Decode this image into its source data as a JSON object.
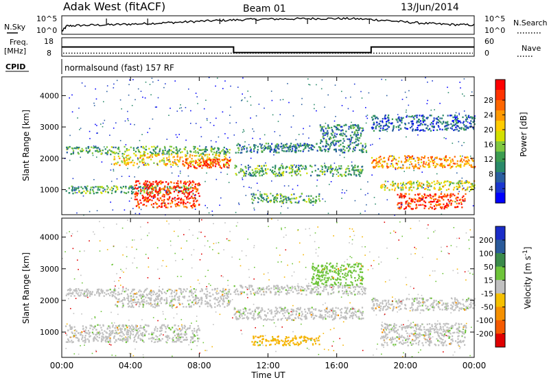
{
  "header": {
    "station": "Adak West (fitACF)",
    "beam": "Beam 01",
    "date": "13/Jun/2014"
  },
  "chart_data": [
    {
      "type": "line",
      "name": "noise-panel",
      "left_label": "N.Sky",
      "right_label": "N.Search",
      "left_ticks": [
        "10^5",
        "10^0"
      ],
      "right_ticks": [
        "10^5",
        "10^0"
      ],
      "x_range_hours": [
        0,
        24
      ],
      "noise_profile": [
        [
          0.0,
          0.15
        ],
        [
          0.3,
          0.45
        ],
        [
          1.0,
          0.48
        ],
        [
          2.0,
          0.5
        ],
        [
          3.0,
          0.52
        ],
        [
          4.0,
          0.55
        ],
        [
          5.0,
          0.58
        ],
        [
          6.0,
          0.62
        ],
        [
          7.0,
          0.66
        ],
        [
          8.0,
          0.7
        ],
        [
          9.0,
          0.74
        ],
        [
          10.0,
          0.77
        ],
        [
          11.0,
          0.8
        ],
        [
          12.0,
          0.82
        ],
        [
          13.0,
          0.83
        ],
        [
          14.0,
          0.84
        ],
        [
          15.0,
          0.85
        ],
        [
          16.0,
          0.85
        ],
        [
          17.0,
          0.84
        ],
        [
          18.0,
          0.8
        ],
        [
          19.0,
          0.74
        ],
        [
          20.0,
          0.66
        ],
        [
          21.0,
          0.6
        ],
        [
          22.0,
          0.55
        ],
        [
          23.0,
          0.52
        ],
        [
          24.0,
          0.5
        ]
      ]
    },
    {
      "type": "line",
      "name": "frequency-panel",
      "left_label": "Freq.",
      "left_unit": "[MHz]",
      "left_ticks": [
        "18",
        "8"
      ],
      "right_label": "Nave",
      "right_ticks": [
        "60",
        "0"
      ],
      "freq_steps_hours": [
        [
          0,
          10,
          13
        ],
        [
          10,
          18,
          10
        ],
        [
          18,
          24,
          13
        ]
      ],
      "freq_range": [
        8,
        18
      ],
      "nave_dotted_level": 10,
      "nave_range": [
        0,
        60
      ],
      "cpid_label": "CPID",
      "cpid_text": "normalsound (fast) 157 RF"
    },
    {
      "type": "heatmap",
      "name": "power-panel",
      "ylabel": "Slant Range [km]",
      "yticks": [
        1000,
        2000,
        3000,
        4000
      ],
      "ylim": [
        200,
        4600
      ],
      "xlim_hours": [
        0,
        24
      ],
      "colorbar_label": "Power [dB]",
      "colorbar_ticks": [
        "28",
        "24",
        "20",
        "16",
        "12",
        "8",
        "4"
      ],
      "colorbar_colors": [
        "#ff0000",
        "#ff3300",
        "#ff6600",
        "#ff9900",
        "#ffcc00",
        "#d4e000",
        "#80c840",
        "#3c9c50",
        "#2a8a6a",
        "#2a5ea0",
        "#1a36d0",
        "#0000ff"
      ],
      "echo_bands": [
        {
          "t0": 0.2,
          "t1": 9.8,
          "r0": 2150,
          "r1": 2400,
          "level": 0.35
        },
        {
          "t0": 3.0,
          "t1": 9.8,
          "r0": 1800,
          "r1": 2150,
          "level": 0.6
        },
        {
          "t0": 7.0,
          "t1": 9.8,
          "r0": 1700,
          "r1": 2000,
          "level": 0.95
        },
        {
          "t0": 0.2,
          "t1": 7.5,
          "r0": 900,
          "r1": 1150,
          "level": 0.4
        },
        {
          "t0": 4.2,
          "t1": 8.0,
          "r0": 450,
          "r1": 1300,
          "level": 0.9
        },
        {
          "t0": 10.0,
          "t1": 17.5,
          "r0": 1450,
          "r1": 1800,
          "level": 0.4
        },
        {
          "t0": 10.0,
          "t1": 17.8,
          "r0": 2200,
          "r1": 2500,
          "level": 0.3
        },
        {
          "t0": 11.0,
          "t1": 15.0,
          "r0": 600,
          "r1": 900,
          "level": 0.35
        },
        {
          "t0": 15.0,
          "t1": 17.5,
          "r0": 2500,
          "r1": 3100,
          "level": 0.25
        },
        {
          "t0": 18.0,
          "t1": 24.0,
          "r0": 1700,
          "r1": 2100,
          "level": 0.7
        },
        {
          "t0": 18.5,
          "t1": 24.0,
          "r0": 1000,
          "r1": 1300,
          "level": 0.55
        },
        {
          "t0": 19.5,
          "t1": 23.5,
          "r0": 400,
          "r1": 900,
          "level": 0.9
        },
        {
          "t0": 18.0,
          "t1": 24.0,
          "r0": 2900,
          "r1": 3400,
          "level": 0.2
        }
      ]
    },
    {
      "type": "heatmap",
      "name": "velocity-panel",
      "ylabel": "Slant Range [km]",
      "yticks": [
        1000,
        2000,
        3000,
        4000
      ],
      "ylim": [
        200,
        4600
      ],
      "xlim_hours": [
        0,
        24
      ],
      "xticks": [
        "00:00",
        "04:00",
        "08:00",
        "12:00",
        "16:00",
        "20:00",
        "00:00"
      ],
      "xlabel": "Time UT",
      "colorbar_label": "Velocity [m s^-1]",
      "colorbar_ticks": [
        "200",
        "100",
        "50",
        "15",
        "-15",
        "-50",
        "-100",
        "-200"
      ],
      "colorbar_colors": [
        "#1a2cc8",
        "#2a5a9a",
        "#3a8a4a",
        "#6ec43a",
        "#c0c0c0",
        "#f5c000",
        "#f59000",
        "#f55a00",
        "#e00000"
      ],
      "echo_bands": [
        {
          "t0": 0.2,
          "t1": 9.8,
          "r0": 2150,
          "r1": 2400,
          "color": "#c0c0c0"
        },
        {
          "t0": 3.0,
          "t1": 9.8,
          "r0": 1800,
          "r1": 2150,
          "color": "#c0c0c0"
        },
        {
          "t0": 0.2,
          "t1": 8.0,
          "r0": 700,
          "r1": 1250,
          "color": "#c0c0c0"
        },
        {
          "t0": 10.0,
          "t1": 17.5,
          "r0": 1400,
          "r1": 1800,
          "color": "#c0c0c0"
        },
        {
          "t0": 10.0,
          "t1": 17.8,
          "r0": 2200,
          "r1": 2500,
          "color": "#c0c0c0"
        },
        {
          "t0": 11.0,
          "t1": 15.0,
          "r0": 600,
          "r1": 900,
          "color": "#f5b400"
        },
        {
          "t0": 18.0,
          "t1": 24.0,
          "r0": 1700,
          "r1": 2100,
          "color": "#c0c0c0"
        },
        {
          "t0": 18.5,
          "t1": 23.5,
          "r0": 600,
          "r1": 1300,
          "color": "#c0c0c0"
        },
        {
          "t0": 14.5,
          "t1": 17.5,
          "r0": 2500,
          "r1": 3200,
          "color": "#6ec43a"
        }
      ]
    }
  ]
}
